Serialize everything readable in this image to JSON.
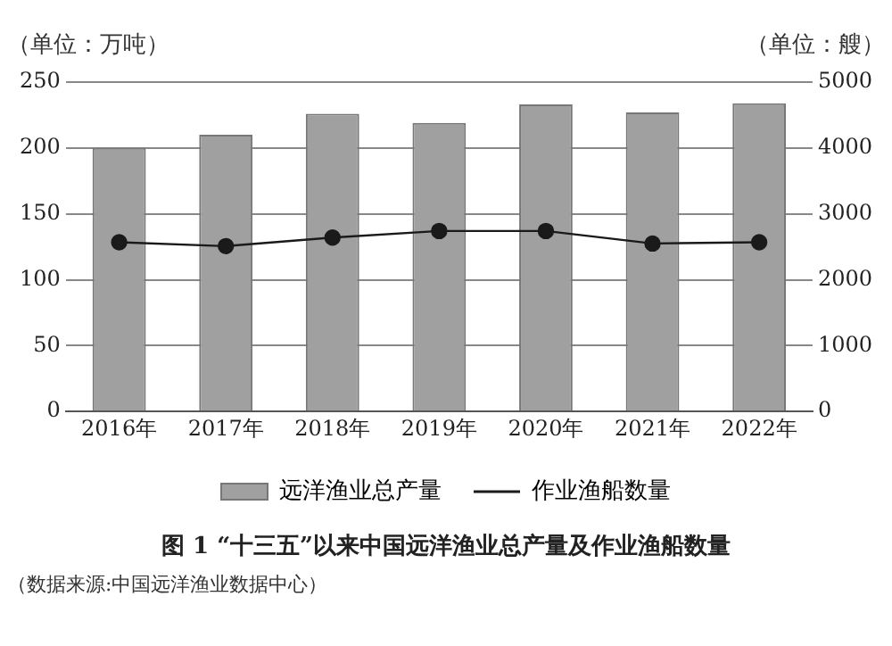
{
  "chart_data": {
    "type": "bar",
    "title": "图 1 “十三五”以来中国远洋渔业总产量及作业渔船数量",
    "ylabel": "（单位：万吨）",
    "y2label": "（单位：艘）",
    "annotations": [
      "（数据来源:中国远洋渔业数据中心）"
    ],
    "categories": [
      "2016年",
      "2017年",
      "2018年",
      "2019年",
      "2020年",
      "2021年",
      "2022年"
    ],
    "series": [
      {
        "name": "远洋渔业总产量",
        "color": "#a0a0a0",
        "values": [
          200,
          210,
          226,
          219,
          233,
          227,
          234
        ]
      },
      {
        "name": "作业渔船数量",
        "type": "line",
        "axis": "y2",
        "color": "#1a1a1a",
        "marker": "circle",
        "values": [
          2570,
          2510,
          2640,
          2740,
          2740,
          2550,
          2570
        ]
      }
    ],
    "ylim": [
      0,
      250
    ],
    "yticks": [
      0,
      50,
      100,
      150,
      200,
      250
    ],
    "y2lim": [
      0,
      5000
    ],
    "y2ticks": [
      0,
      1000,
      2000,
      3000,
      4000,
      5000
    ],
    "grid": "y",
    "legend": "bottom"
  }
}
